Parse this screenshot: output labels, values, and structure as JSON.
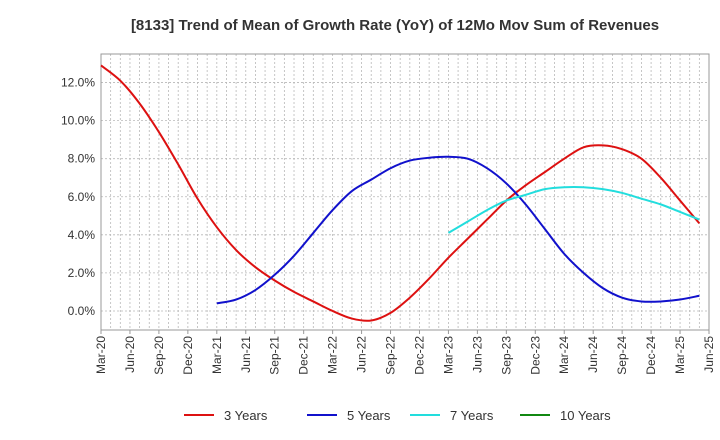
{
  "chart_data": {
    "type": "line",
    "title": "[8133]  Trend of Mean of Growth Rate (YoY) of 12Mo Mov Sum of Revenues",
    "xlabel": "",
    "ylabel": "",
    "ylim": [
      -1.0,
      13.5
    ],
    "y_ticks": [
      0.0,
      2.0,
      4.0,
      6.0,
      8.0,
      10.0,
      12.0
    ],
    "y_tick_labels": [
      "0.0%",
      "2.0%",
      "4.0%",
      "6.0%",
      "8.0%",
      "10.0%",
      "12.0%"
    ],
    "x_range": [
      0,
      63
    ],
    "x_tick_labels": [
      "Mar-20",
      "Jun-20",
      "Sep-20",
      "Dec-20",
      "Mar-21",
      "Jun-21",
      "Sep-21",
      "Dec-21",
      "Mar-22",
      "Jun-22",
      "Sep-22",
      "Dec-22",
      "Mar-23",
      "Jun-23",
      "Sep-23",
      "Dec-23",
      "Mar-24",
      "Jun-24",
      "Sep-24",
      "Dec-24",
      "Mar-25",
      "Jun-25"
    ],
    "grid": true,
    "legend_position": "bottom",
    "series": [
      {
        "name": "3 Years",
        "color": "#dd1111",
        "x": [
          0,
          2,
          4,
          6,
          8,
          10,
          12,
          14,
          16,
          18,
          20,
          22,
          24,
          26,
          28,
          30,
          32,
          34,
          36,
          38,
          40,
          42,
          44,
          46,
          48,
          50,
          52,
          54,
          56,
          58,
          60,
          62
        ],
        "values": [
          12.9,
          12.1,
          10.9,
          9.4,
          7.7,
          5.9,
          4.4,
          3.2,
          2.3,
          1.6,
          1.0,
          0.5,
          0.0,
          -0.4,
          -0.5,
          -0.1,
          0.7,
          1.7,
          2.8,
          3.8,
          4.8,
          5.8,
          6.6,
          7.3,
          8.0,
          8.6,
          8.7,
          8.5,
          8.0,
          7.0,
          5.8,
          4.6
        ]
      },
      {
        "name": "5 Years",
        "color": "#1111cc",
        "x": [
          12,
          14,
          16,
          18,
          20,
          22,
          24,
          26,
          28,
          30,
          32,
          34,
          36,
          38,
          40,
          42,
          44,
          46,
          48,
          50,
          52,
          54,
          56,
          58,
          60,
          62
        ],
        "values": [
          0.4,
          0.6,
          1.1,
          1.9,
          2.9,
          4.1,
          5.3,
          6.3,
          6.9,
          7.5,
          7.9,
          8.05,
          8.1,
          8.0,
          7.5,
          6.7,
          5.6,
          4.3,
          3.0,
          2.0,
          1.2,
          0.7,
          0.5,
          0.5,
          0.6,
          0.8
        ]
      },
      {
        "name": "7 Years",
        "color": "#22dddd",
        "x": [
          36,
          38,
          40,
          42,
          44,
          46,
          48,
          50,
          52,
          54,
          56,
          58,
          60,
          62
        ],
        "values": [
          4.1,
          4.7,
          5.3,
          5.8,
          6.1,
          6.4,
          6.5,
          6.5,
          6.4,
          6.2,
          5.9,
          5.6,
          5.2,
          4.8
        ]
      },
      {
        "name": "10 Years",
        "color": "#118811",
        "x": [],
        "values": []
      }
    ]
  }
}
